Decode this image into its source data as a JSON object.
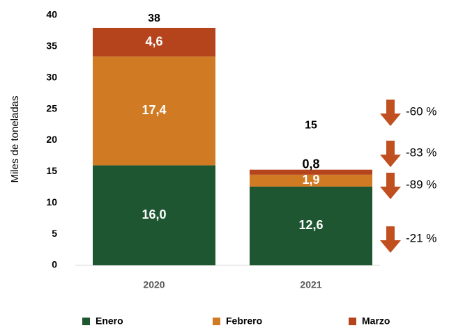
{
  "chart_data": {
    "type": "stacked_bar",
    "ylabel": "Miles de toneladas",
    "categories": [
      "2020",
      "2021"
    ],
    "series": [
      {
        "name": "Enero",
        "color": "#1e5631",
        "values": [
          16.0,
          12.6
        ],
        "value_labels": [
          "16,0",
          "12,6"
        ]
      },
      {
        "name": "Febrero",
        "color": "#d07a23",
        "values": [
          17.4,
          1.9
        ],
        "value_labels": [
          "17,4",
          "1,9"
        ]
      },
      {
        "name": "Marzo",
        "color": "#b5441c",
        "values": [
          4.6,
          0.8
        ],
        "value_labels": [
          "4,6",
          "0,8"
        ]
      }
    ],
    "totals": [
      38,
      15
    ],
    "ylim": [
      0,
      40
    ],
    "yticks": [
      0,
      5,
      10,
      15,
      20,
      25,
      30,
      35,
      40
    ],
    "annotations": [
      {
        "text": "-60 %",
        "target": "total"
      },
      {
        "text": "-83 %",
        "target": "Marzo"
      },
      {
        "text": "-89 %",
        "target": "Febrero"
      },
      {
        "text": "-21 %",
        "target": "Enero"
      }
    ],
    "annotation_color": "#c0501f",
    "legend": "bottom"
  }
}
